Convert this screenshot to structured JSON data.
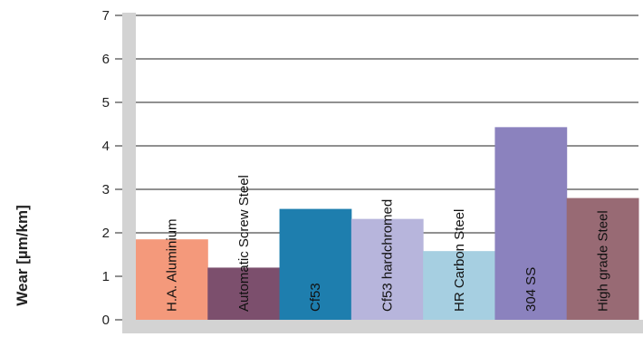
{
  "chart_data": {
    "type": "bar",
    "title": "",
    "xlabel": "",
    "ylabel": "Wear [µm/km]",
    "ylim": [
      0,
      7
    ],
    "yticks": [
      0,
      1,
      2,
      3,
      4,
      5,
      6,
      7
    ],
    "grid": true,
    "categories": [
      "H.A. Aluminium",
      "Automatic Screw Steel",
      "Cf53",
      "Cf53 hardchromed",
      "HR Carbon Steel",
      "304 SS",
      "High grade Steel"
    ],
    "values": [
      1.85,
      1.2,
      2.55,
      2.32,
      1.58,
      4.43,
      2.8
    ],
    "colors": [
      "#f4997b",
      "#7c4f6d",
      "#1e7eae",
      "#b7b5dc",
      "#a6cfe1",
      "#8b82be",
      "#986a74"
    ],
    "frame_color": "#d3d3d3",
    "grid_color": "#222222"
  }
}
